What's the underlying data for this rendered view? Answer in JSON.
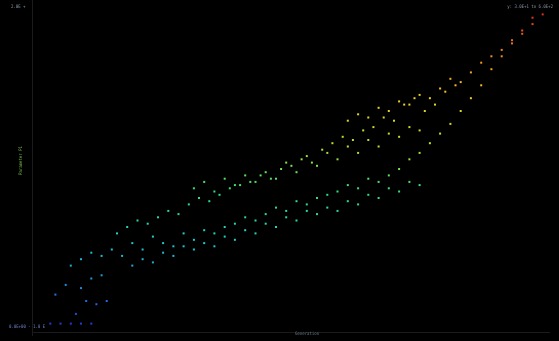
{
  "labels": {
    "top_left": "2.0E +",
    "top_right": "y: 3.0E+1 to 6.0E+2",
    "bottom_left": "0.0E+00 - 1.0 E",
    "x_axis": "Generation",
    "y_axis": "Parameter P1"
  },
  "colors": {
    "background": "#000000",
    "gradient": [
      "#1f2fd6",
      "#1f8fe0",
      "#1fd0c8",
      "#2fe07a",
      "#b8e02a",
      "#f0d020",
      "#f08a20",
      "#e02020"
    ]
  },
  "chart_data": {
    "type": "scatter",
    "title": "",
    "xlabel": "Generation",
    "ylabel": "Parameter P1",
    "grid": false,
    "legend": "none",
    "xlim": [
      0,
      100
    ],
    "ylim": [
      0,
      100
    ],
    "series": [
      {
        "color_scale": "y-gradient",
        "points": [
          [
            2,
            2
          ],
          [
            4,
            2
          ],
          [
            6,
            2
          ],
          [
            8,
            2
          ],
          [
            10,
            2
          ],
          [
            7,
            5
          ],
          [
            9,
            9
          ],
          [
            11,
            8
          ],
          [
            13,
            9
          ],
          [
            3,
            11
          ],
          [
            5,
            14
          ],
          [
            8,
            13
          ],
          [
            10,
            16
          ],
          [
            12,
            17
          ],
          [
            6,
            20
          ],
          [
            8,
            22
          ],
          [
            10,
            24
          ],
          [
            12,
            23
          ],
          [
            14,
            25
          ],
          [
            16,
            23
          ],
          [
            18,
            27
          ],
          [
            20,
            25
          ],
          [
            22,
            29
          ],
          [
            24,
            27
          ],
          [
            26,
            26
          ],
          [
            28,
            30
          ],
          [
            30,
            28
          ],
          [
            32,
            31
          ],
          [
            34,
            30
          ],
          [
            36,
            32
          ],
          [
            38,
            33
          ],
          [
            40,
            35
          ],
          [
            42,
            34
          ],
          [
            44,
            36
          ],
          [
            46,
            38
          ],
          [
            48,
            37
          ],
          [
            50,
            40
          ],
          [
            52,
            39
          ],
          [
            54,
            41
          ],
          [
            56,
            42
          ],
          [
            58,
            43
          ],
          [
            60,
            45
          ],
          [
            62,
            44
          ],
          [
            64,
            47
          ],
          [
            66,
            46
          ],
          [
            68,
            48
          ],
          [
            70,
            50
          ],
          [
            72,
            53
          ],
          [
            74,
            55
          ],
          [
            76,
            58
          ],
          [
            78,
            61
          ],
          [
            80,
            64
          ],
          [
            82,
            68
          ],
          [
            84,
            72
          ],
          [
            86,
            76
          ],
          [
            88,
            81
          ],
          [
            90,
            85
          ],
          [
            92,
            89
          ],
          [
            94,
            93
          ],
          [
            96,
            97
          ],
          [
            15,
            30
          ],
          [
            17,
            32
          ],
          [
            19,
            34
          ],
          [
            21,
            33
          ],
          [
            23,
            35
          ],
          [
            25,
            37
          ],
          [
            27,
            36
          ],
          [
            29,
            39
          ],
          [
            31,
            41
          ],
          [
            33,
            40
          ],
          [
            35,
            42
          ],
          [
            37,
            44
          ],
          [
            39,
            45
          ],
          [
            41,
            46
          ],
          [
            43,
            48
          ],
          [
            45,
            47
          ],
          [
            47,
            50
          ],
          [
            49,
            51
          ],
          [
            51,
            53
          ],
          [
            53,
            52
          ],
          [
            55,
            56
          ],
          [
            57,
            58
          ],
          [
            59,
            60
          ],
          [
            61,
            59
          ],
          [
            63,
            62
          ],
          [
            65,
            63
          ],
          [
            67,
            66
          ],
          [
            69,
            65
          ],
          [
            71,
            70
          ],
          [
            73,
            72
          ],
          [
            75,
            68
          ],
          [
            77,
            70
          ],
          [
            79,
            74
          ],
          [
            81,
            76
          ],
          [
            18,
            20
          ],
          [
            20,
            22
          ],
          [
            22,
            21
          ],
          [
            24,
            24
          ],
          [
            26,
            23
          ],
          [
            28,
            26
          ],
          [
            30,
            25
          ],
          [
            32,
            27
          ],
          [
            34,
            26
          ],
          [
            36,
            29
          ],
          [
            38,
            28
          ],
          [
            40,
            31
          ],
          [
            42,
            30
          ],
          [
            44,
            33
          ],
          [
            46,
            32
          ],
          [
            48,
            35
          ],
          [
            50,
            34
          ],
          [
            52,
            37
          ],
          [
            54,
            36
          ],
          [
            56,
            38
          ],
          [
            58,
            37
          ],
          [
            60,
            40
          ],
          [
            62,
            39
          ],
          [
            64,
            42
          ],
          [
            66,
            41
          ],
          [
            68,
            44
          ],
          [
            70,
            43
          ],
          [
            72,
            46
          ],
          [
            74,
            45
          ],
          [
            30,
            44
          ],
          [
            32,
            46
          ],
          [
            34,
            43
          ],
          [
            36,
            47
          ],
          [
            38,
            45
          ],
          [
            40,
            48
          ],
          [
            42,
            46
          ],
          [
            44,
            49
          ],
          [
            46,
            47
          ],
          [
            48,
            52
          ],
          [
            50,
            49
          ],
          [
            52,
            54
          ],
          [
            54,
            51
          ],
          [
            56,
            55
          ],
          [
            58,
            53
          ],
          [
            60,
            57
          ],
          [
            62,
            55
          ],
          [
            64,
            59
          ],
          [
            66,
            57
          ],
          [
            68,
            61
          ],
          [
            70,
            60
          ],
          [
            72,
            63
          ],
          [
            74,
            62
          ],
          [
            60,
            65
          ],
          [
            62,
            67
          ],
          [
            64,
            66
          ],
          [
            66,
            69
          ],
          [
            68,
            68
          ],
          [
            70,
            71
          ],
          [
            72,
            70
          ],
          [
            74,
            73
          ],
          [
            76,
            72
          ],
          [
            78,
            75
          ],
          [
            80,
            78
          ],
          [
            82,
            77
          ],
          [
            84,
            80
          ],
          [
            86,
            83
          ],
          [
            88,
            85
          ],
          [
            90,
            87
          ],
          [
            92,
            90
          ],
          [
            94,
            92
          ],
          [
            96,
            95
          ],
          [
            98,
            98
          ]
        ]
      }
    ]
  }
}
